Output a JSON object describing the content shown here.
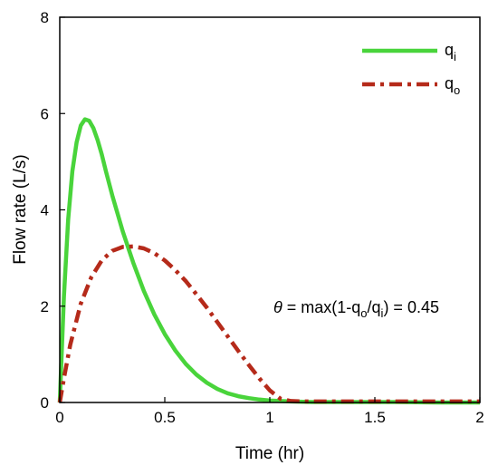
{
  "chart_data": {
    "type": "line",
    "xlabel": "Time (hr)",
    "ylabel": "Flow rate (L/s)",
    "xlim": [
      0,
      2
    ],
    "ylim": [
      0,
      8
    ],
    "x_ticks": [
      "0",
      "0.5",
      "1",
      "1.5",
      "2"
    ],
    "y_ticks": [
      "0",
      "2",
      "4",
      "6",
      "8"
    ],
    "grid": false,
    "legend_position": "top-right",
    "series": [
      {
        "name_base": "q",
        "name_sub": "i",
        "color": "#49d43b",
        "style": "solid",
        "x": [
          0,
          0.02,
          0.04,
          0.06,
          0.08,
          0.1,
          0.12,
          0.14,
          0.16,
          0.18,
          0.2,
          0.22,
          0.25,
          0.3,
          0.35,
          0.4,
          0.45,
          0.5,
          0.55,
          0.6,
          0.65,
          0.7,
          0.75,
          0.8,
          0.85,
          0.9,
          0.95,
          1.0,
          1.05,
          1.1,
          1.2,
          1.4,
          1.6,
          1.8,
          2.0
        ],
        "y": [
          0,
          2.2,
          3.8,
          4.8,
          5.4,
          5.75,
          5.88,
          5.85,
          5.7,
          5.45,
          5.15,
          4.8,
          4.3,
          3.55,
          2.9,
          2.32,
          1.83,
          1.42,
          1.08,
          0.8,
          0.58,
          0.41,
          0.28,
          0.19,
          0.13,
          0.09,
          0.06,
          0.04,
          0.03,
          0.02,
          0.01,
          0.01,
          0.01,
          0.0,
          0.0
        ]
      },
      {
        "name_base": "q",
        "name_sub": "o",
        "color": "#b52a1a",
        "style": "dashdot",
        "x": [
          0,
          0.02,
          0.05,
          0.1,
          0.15,
          0.2,
          0.25,
          0.3,
          0.35,
          0.4,
          0.45,
          0.5,
          0.55,
          0.6,
          0.65,
          0.7,
          0.75,
          0.8,
          0.85,
          0.9,
          0.95,
          1.0,
          1.05,
          1.1,
          1.15,
          1.2,
          1.4,
          1.6,
          1.8,
          2.0
        ],
        "y": [
          0,
          0.5,
          1.2,
          2.05,
          2.6,
          2.95,
          3.15,
          3.23,
          3.24,
          3.2,
          3.1,
          2.95,
          2.75,
          2.52,
          2.25,
          1.97,
          1.67,
          1.37,
          1.07,
          0.78,
          0.5,
          0.25,
          0.08,
          0.03,
          0.02,
          0.02,
          0.02,
          0.02,
          0.02,
          0.02
        ]
      }
    ],
    "annotation": {
      "symbol": "θ",
      "prefix": " = max(1-q",
      "sub1": "o",
      "mid": "/q",
      "sub2": "i",
      "suffix": ") = 0.45"
    }
  }
}
